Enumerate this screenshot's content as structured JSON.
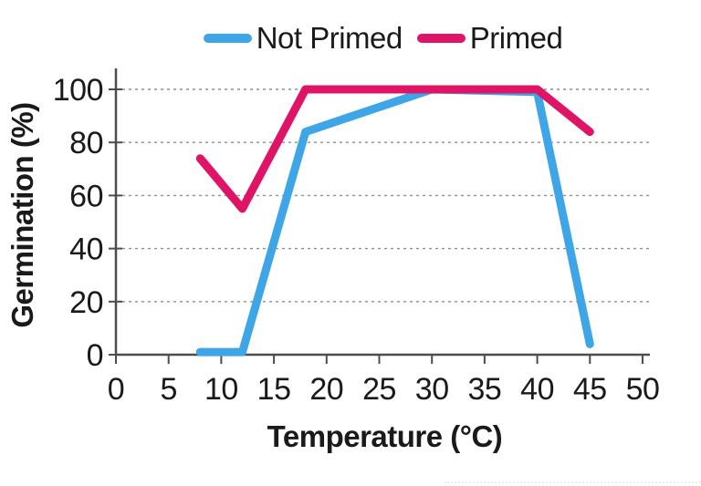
{
  "chart_data": {
    "type": "line",
    "title": "",
    "xlabel": "Temperature (°C)",
    "ylabel": "Germination (%)",
    "xlim": [
      0,
      50
    ],
    "ylim": [
      0,
      100
    ],
    "xticks": [
      0,
      5,
      10,
      15,
      20,
      25,
      30,
      35,
      40,
      45,
      50
    ],
    "yticks": [
      0,
      20,
      40,
      60,
      80,
      100
    ],
    "grid": "horizontal dashed gridlines at each y tick",
    "legend_position": "top-center",
    "series": [
      {
        "name": "Not Primed",
        "color": "#3EA5E7",
        "points": [
          [
            8,
            1
          ],
          [
            12,
            1
          ],
          [
            18,
            84
          ],
          [
            30,
            100
          ],
          [
            40,
            99
          ],
          [
            45,
            4
          ]
        ]
      },
      {
        "name": "Primed",
        "color": "#E01467",
        "points": [
          [
            8,
            74
          ],
          [
            12,
            55
          ],
          [
            18,
            100
          ],
          [
            30,
            100
          ],
          [
            40,
            100
          ],
          [
            45,
            84
          ]
        ]
      }
    ]
  },
  "style": {
    "axis_color": "#4d4d4d",
    "grid_color": "#8f8f8f",
    "text_color": "#1a1a1a",
    "background": "#ffffff"
  }
}
